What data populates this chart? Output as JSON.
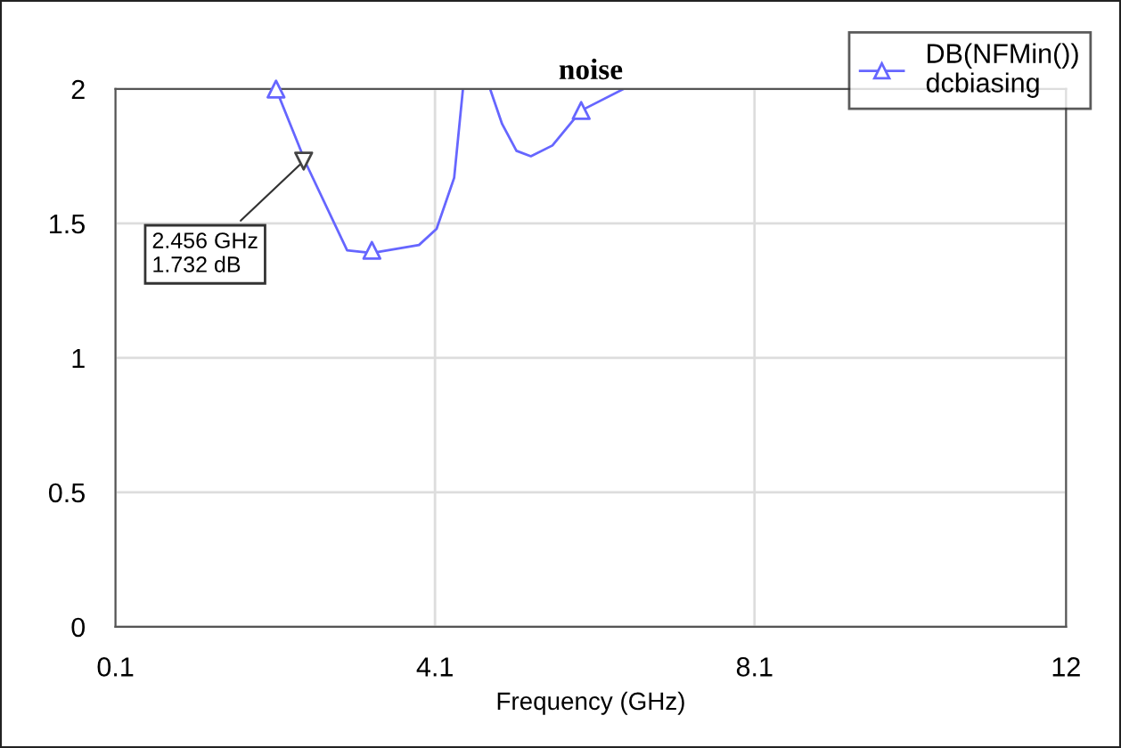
{
  "chart_data": {
    "type": "line",
    "title": "noise",
    "xlabel": "Frequency (GHz)",
    "xlim": [
      0.1,
      12
    ],
    "xticks": [
      0.1,
      4.1,
      8.1,
      12
    ],
    "ylim": [
      0,
      2
    ],
    "yticks": [
      0,
      0.5,
      1,
      1.5,
      2
    ],
    "grid": true,
    "legend": "top right",
    "series": [
      {
        "name": "DB(NFMin())\ndcbiasing",
        "color": "#6666ff",
        "marker": "none",
        "x": [
          2.11,
          2.49,
          3.0,
          3.31,
          3.9,
          4.12,
          4.34,
          4.45,
          4.62,
          4.79,
          4.94,
          5.12,
          5.3,
          5.57,
          5.93,
          6.46
        ],
        "values": [
          2.0,
          1.72,
          1.4,
          1.39,
          1.42,
          1.48,
          1.67,
          2.0,
          null,
          2.0,
          1.87,
          1.77,
          1.75,
          1.79,
          1.92,
          2.0
        ]
      },
      {
        "type": "scatter",
        "color": "#6666ff",
        "marker": "triangle",
        "x": [
          2.11,
          3.31,
          5.93
        ],
        "values": [
          2.0,
          1.4,
          1.92
        ]
      }
    ],
    "annotations": [
      {
        "text": "2.456 GHz\n1.732 dB",
        "x": 2.456,
        "y": 1.732
      }
    ]
  }
}
